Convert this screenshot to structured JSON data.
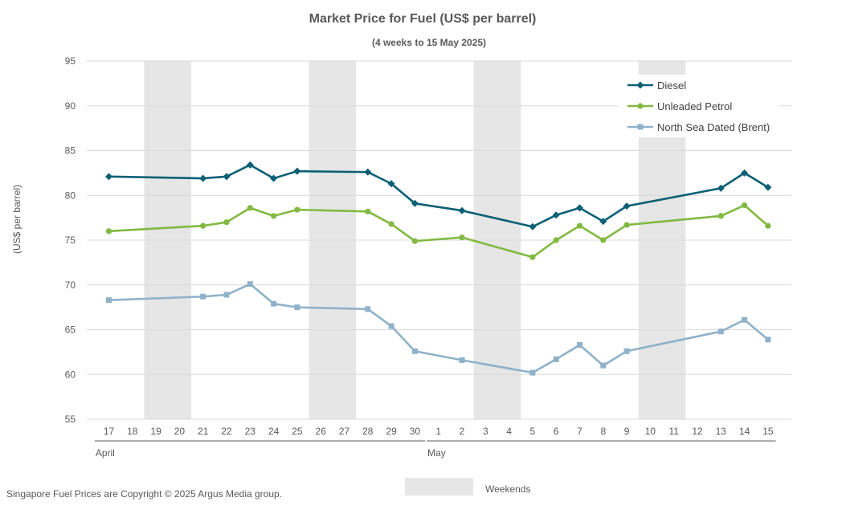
{
  "chart_data": {
    "type": "line",
    "title": "Market Price for Fuel (US$ per barrel)",
    "subtitle": "(4 weeks to 15 May 2025)",
    "ylabel": "(US$ per barrel)",
    "ylim": [
      55,
      95
    ],
    "yticks": [
      55,
      60,
      65,
      70,
      75,
      80,
      85,
      90,
      95
    ],
    "grid": true,
    "legend_position": "top-right",
    "x_ticks": [
      "17",
      "18",
      "19",
      "20",
      "21",
      "22",
      "23",
      "24",
      "25",
      "26",
      "27",
      "28",
      "29",
      "30",
      "1",
      "2",
      "3",
      "4",
      "5",
      "6",
      "7",
      "8",
      "9",
      "10",
      "11",
      "12",
      "13",
      "14",
      "15"
    ],
    "month_labels": [
      {
        "label": "April",
        "start_index": 0
      },
      {
        "label": "May",
        "start_index": 14
      }
    ],
    "weekend_bands": [
      [
        2,
        3
      ],
      [
        9,
        10
      ],
      [
        16,
        17
      ],
      [
        23,
        24
      ]
    ],
    "series": [
      {
        "name": "Diesel",
        "color": "#0b6075",
        "marker": "diamond",
        "points": [
          [
            0,
            82.1
          ],
          [
            4,
            81.9
          ],
          [
            5,
            82.1
          ],
          [
            6,
            83.4
          ],
          [
            7,
            81.9
          ],
          [
            8,
            82.7
          ],
          [
            11,
            82.6
          ],
          [
            12,
            81.3
          ],
          [
            13,
            79.1
          ],
          [
            15,
            78.3
          ],
          [
            18,
            76.5
          ],
          [
            19,
            77.8
          ],
          [
            20,
            78.6
          ],
          [
            21,
            77.1
          ],
          [
            22,
            78.8
          ],
          [
            26,
            80.8
          ],
          [
            27,
            82.5
          ],
          [
            28,
            80.9
          ]
        ]
      },
      {
        "name": "Unleaded Petrol",
        "color": "#82b941",
        "marker": "circle",
        "points": [
          [
            0,
            76.0
          ],
          [
            4,
            76.6
          ],
          [
            5,
            77.0
          ],
          [
            6,
            78.6
          ],
          [
            7,
            77.7
          ],
          [
            8,
            78.4
          ],
          [
            11,
            78.2
          ],
          [
            12,
            76.8
          ],
          [
            13,
            74.9
          ],
          [
            15,
            75.3
          ],
          [
            18,
            73.1
          ],
          [
            19,
            75.0
          ],
          [
            20,
            76.6
          ],
          [
            21,
            75.0
          ],
          [
            22,
            76.7
          ],
          [
            26,
            77.7
          ],
          [
            27,
            78.9
          ],
          [
            28,
            76.6
          ]
        ]
      },
      {
        "name": "North Sea Dated (Brent)",
        "color": "#8fb1c9",
        "marker": "square",
        "points": [
          [
            0,
            68.3
          ],
          [
            4,
            68.7
          ],
          [
            5,
            68.9
          ],
          [
            6,
            70.1
          ],
          [
            7,
            67.9
          ],
          [
            8,
            67.5
          ],
          [
            11,
            67.3
          ],
          [
            12,
            65.4
          ],
          [
            13,
            62.6
          ],
          [
            15,
            61.6
          ],
          [
            18,
            60.2
          ],
          [
            19,
            61.7
          ],
          [
            20,
            63.3
          ],
          [
            21,
            61.0
          ],
          [
            22,
            62.6
          ],
          [
            26,
            64.8
          ],
          [
            27,
            66.1
          ],
          [
            28,
            63.9
          ]
        ]
      }
    ],
    "weekend_legend_label": "Weekends"
  },
  "footer": "Singapore Fuel Prices are Copyright © 2025 Argus Media group."
}
